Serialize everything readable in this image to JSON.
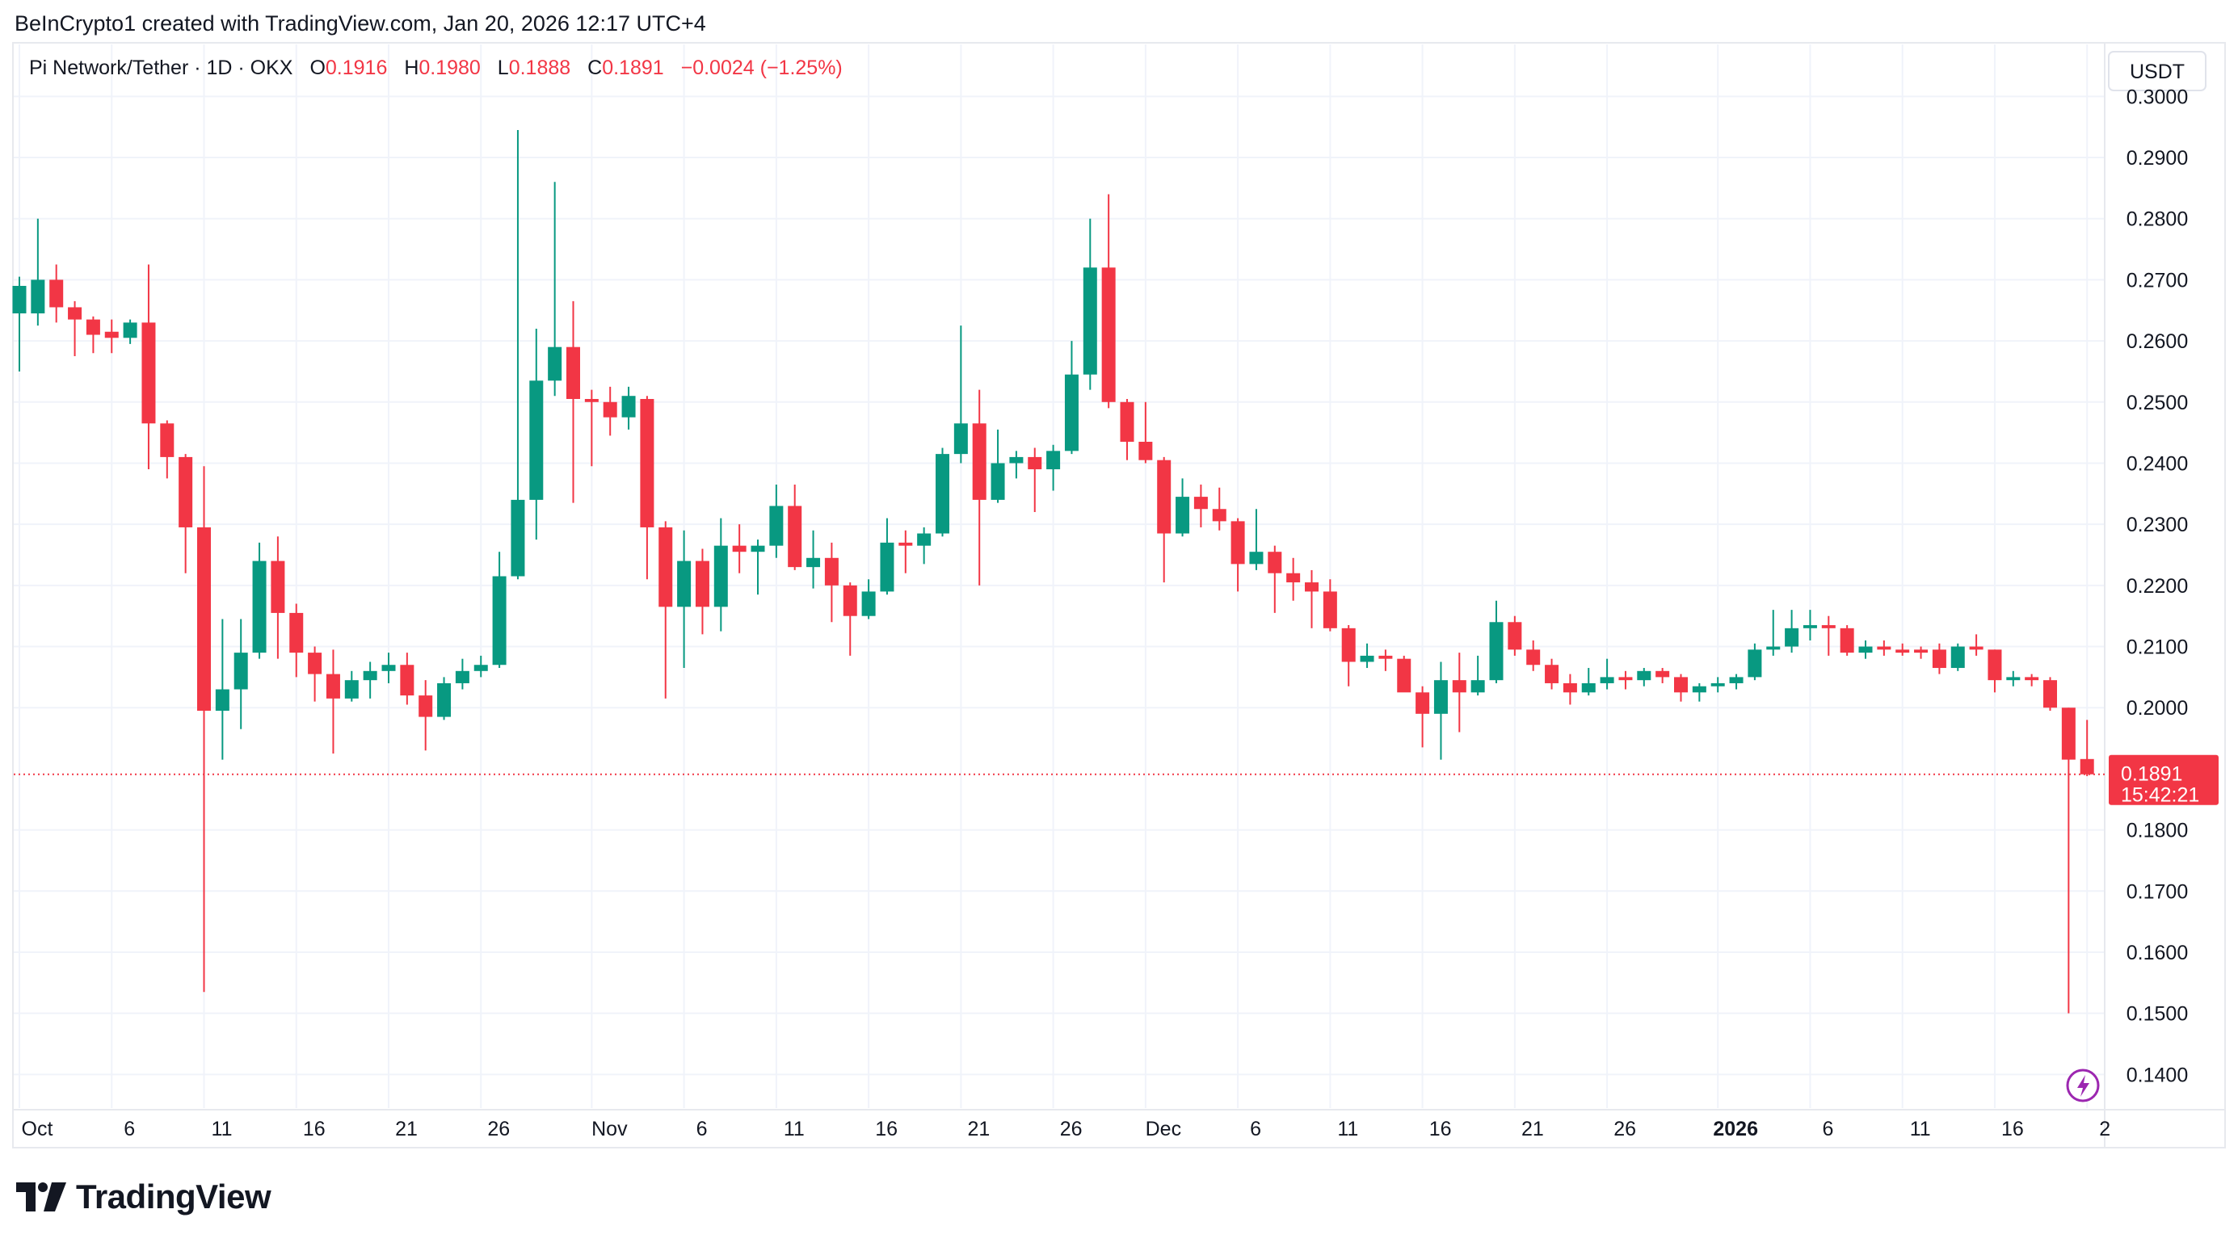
{
  "header": {
    "credit": "BeInCrypto1 created with TradingView.com, Jan 20, 2026 12:17 UTC+4"
  },
  "legend": {
    "symbol": "Pi Network/Tether · 1D · OKX",
    "open_label": "O",
    "open": "0.1916",
    "high_label": "H",
    "high": "0.1980",
    "low_label": "L",
    "low": "0.1888",
    "close_label": "C",
    "close": "0.1891",
    "change": "−0.0024 (−1.25%)"
  },
  "brand": {
    "name": "TradingView"
  },
  "colors": {
    "up": "#089981",
    "down": "#f23645",
    "grid": "#f0f3fa",
    "last_price": "#f23645",
    "lightning": "#9c27b0"
  },
  "chart_data": {
    "type": "candlestick",
    "title": "Pi Network/Tether · 1D · OKX",
    "currency": "USDT",
    "ylim": [
      0.1345,
      0.3085
    ],
    "y_ticks": [
      "0.3000",
      "0.2900",
      "0.2800",
      "0.2700",
      "0.2600",
      "0.2500",
      "0.2400",
      "0.2300",
      "0.2200",
      "0.2100",
      "0.2000",
      "0.1800",
      "0.1700",
      "0.1600",
      "0.1500",
      "0.1400"
    ],
    "x_ticks": [
      {
        "label": "Oct",
        "bold": false,
        "day": 0
      },
      {
        "label": "6",
        "bold": false,
        "day": 5
      },
      {
        "label": "11",
        "bold": false,
        "day": 10
      },
      {
        "label": "16",
        "bold": false,
        "day": 15
      },
      {
        "label": "21",
        "bold": false,
        "day": 20
      },
      {
        "label": "26",
        "bold": false,
        "day": 25
      },
      {
        "label": "Nov",
        "bold": false,
        "day": 31
      },
      {
        "label": "6",
        "bold": false,
        "day": 36
      },
      {
        "label": "11",
        "bold": false,
        "day": 41
      },
      {
        "label": "16",
        "bold": false,
        "day": 46
      },
      {
        "label": "21",
        "bold": false,
        "day": 51
      },
      {
        "label": "26",
        "bold": false,
        "day": 56
      },
      {
        "label": "Dec",
        "bold": false,
        "day": 61
      },
      {
        "label": "6",
        "bold": false,
        "day": 66
      },
      {
        "label": "11",
        "bold": false,
        "day": 71
      },
      {
        "label": "16",
        "bold": false,
        "day": 76
      },
      {
        "label": "21",
        "bold": false,
        "day": 81
      },
      {
        "label": "26",
        "bold": false,
        "day": 86
      },
      {
        "label": "2026",
        "bold": true,
        "day": 92
      },
      {
        "label": "6",
        "bold": false,
        "day": 97
      },
      {
        "label": "11",
        "bold": false,
        "day": 102
      },
      {
        "label": "16",
        "bold": false,
        "day": 107
      },
      {
        "label": "2",
        "bold": false,
        "day": 112
      }
    ],
    "last_price": {
      "value": 0.1891,
      "label": "0.1891",
      "countdown": "15:42:21"
    },
    "candles": [
      {
        "date": "2025-09-30",
        "o": 0.2645,
        "h": 0.2705,
        "l": 0.255,
        "c": 0.269
      },
      {
        "date": "2025-10-01",
        "o": 0.2645,
        "h": 0.28,
        "l": 0.2625,
        "c": 0.27
      },
      {
        "date": "2025-10-02",
        "o": 0.27,
        "h": 0.2725,
        "l": 0.263,
        "c": 0.2655
      },
      {
        "date": "2025-10-03",
        "o": 0.2655,
        "h": 0.2665,
        "l": 0.2575,
        "c": 0.2635
      },
      {
        "date": "2025-10-04",
        "o": 0.2635,
        "h": 0.264,
        "l": 0.258,
        "c": 0.261
      },
      {
        "date": "2025-10-05",
        "o": 0.2615,
        "h": 0.2635,
        "l": 0.258,
        "c": 0.2605
      },
      {
        "date": "2025-10-06",
        "o": 0.2605,
        "h": 0.2635,
        "l": 0.2595,
        "c": 0.263
      },
      {
        "date": "2025-10-07",
        "o": 0.263,
        "h": 0.2725,
        "l": 0.239,
        "c": 0.2465
      },
      {
        "date": "2025-10-08",
        "o": 0.2465,
        "h": 0.247,
        "l": 0.2375,
        "c": 0.241
      },
      {
        "date": "2025-10-09",
        "o": 0.241,
        "h": 0.2415,
        "l": 0.222,
        "c": 0.2295
      },
      {
        "date": "2025-10-10",
        "o": 0.2295,
        "h": 0.2395,
        "l": 0.1535,
        "c": 0.1995
      },
      {
        "date": "2025-10-11",
        "o": 0.1995,
        "h": 0.2145,
        "l": 0.1915,
        "c": 0.203
      },
      {
        "date": "2025-10-12",
        "o": 0.203,
        "h": 0.2145,
        "l": 0.1965,
        "c": 0.209
      },
      {
        "date": "2025-10-13",
        "o": 0.209,
        "h": 0.227,
        "l": 0.208,
        "c": 0.224
      },
      {
        "date": "2025-10-14",
        "o": 0.224,
        "h": 0.228,
        "l": 0.208,
        "c": 0.2155
      },
      {
        "date": "2025-10-15",
        "o": 0.2155,
        "h": 0.217,
        "l": 0.205,
        "c": 0.209
      },
      {
        "date": "2025-10-16",
        "o": 0.209,
        "h": 0.21,
        "l": 0.201,
        "c": 0.2055
      },
      {
        "date": "2025-10-17",
        "o": 0.2055,
        "h": 0.2095,
        "l": 0.1925,
        "c": 0.2015
      },
      {
        "date": "2025-10-18",
        "o": 0.2015,
        "h": 0.206,
        "l": 0.201,
        "c": 0.2045
      },
      {
        "date": "2025-10-19",
        "o": 0.2045,
        "h": 0.2075,
        "l": 0.2015,
        "c": 0.206
      },
      {
        "date": "2025-10-20",
        "o": 0.206,
        "h": 0.209,
        "l": 0.204,
        "c": 0.207
      },
      {
        "date": "2025-10-21",
        "o": 0.207,
        "h": 0.209,
        "l": 0.2005,
        "c": 0.202
      },
      {
        "date": "2025-10-22",
        "o": 0.202,
        "h": 0.2045,
        "l": 0.193,
        "c": 0.1985
      },
      {
        "date": "2025-10-23",
        "o": 0.1985,
        "h": 0.205,
        "l": 0.198,
        "c": 0.204
      },
      {
        "date": "2025-10-24",
        "o": 0.204,
        "h": 0.208,
        "l": 0.203,
        "c": 0.206
      },
      {
        "date": "2025-10-25",
        "o": 0.206,
        "h": 0.2085,
        "l": 0.205,
        "c": 0.207
      },
      {
        "date": "2025-10-26",
        "o": 0.207,
        "h": 0.2255,
        "l": 0.2065,
        "c": 0.2215
      },
      {
        "date": "2025-10-27",
        "o": 0.2215,
        "h": 0.2945,
        "l": 0.221,
        "c": 0.234
      },
      {
        "date": "2025-10-28",
        "o": 0.234,
        "h": 0.262,
        "l": 0.2275,
        "c": 0.2535
      },
      {
        "date": "2025-10-29",
        "o": 0.2535,
        "h": 0.286,
        "l": 0.251,
        "c": 0.259
      },
      {
        "date": "2025-10-30",
        "o": 0.259,
        "h": 0.2665,
        "l": 0.2335,
        "c": 0.2505
      },
      {
        "date": "2025-10-31",
        "o": 0.2505,
        "h": 0.252,
        "l": 0.2395,
        "c": 0.25
      },
      {
        "date": "2025-11-01",
        "o": 0.25,
        "h": 0.2525,
        "l": 0.2445,
        "c": 0.2475
      },
      {
        "date": "2025-11-02",
        "o": 0.2475,
        "h": 0.2525,
        "l": 0.2455,
        "c": 0.251
      },
      {
        "date": "2025-11-03",
        "o": 0.2505,
        "h": 0.251,
        "l": 0.221,
        "c": 0.2295
      },
      {
        "date": "2025-11-04",
        "o": 0.2295,
        "h": 0.2305,
        "l": 0.2015,
        "c": 0.2165
      },
      {
        "date": "2025-11-05",
        "o": 0.2165,
        "h": 0.229,
        "l": 0.2065,
        "c": 0.224
      },
      {
        "date": "2025-11-06",
        "o": 0.224,
        "h": 0.226,
        "l": 0.212,
        "c": 0.2165
      },
      {
        "date": "2025-11-07",
        "o": 0.2165,
        "h": 0.231,
        "l": 0.2125,
        "c": 0.2265
      },
      {
        "date": "2025-11-08",
        "o": 0.2265,
        "h": 0.23,
        "l": 0.222,
        "c": 0.2255
      },
      {
        "date": "2025-11-09",
        "o": 0.2255,
        "h": 0.2275,
        "l": 0.2185,
        "c": 0.2265
      },
      {
        "date": "2025-11-10",
        "o": 0.2265,
        "h": 0.2365,
        "l": 0.2245,
        "c": 0.233
      },
      {
        "date": "2025-11-11",
        "o": 0.233,
        "h": 0.2365,
        "l": 0.2225,
        "c": 0.223
      },
      {
        "date": "2025-11-12",
        "o": 0.223,
        "h": 0.229,
        "l": 0.2195,
        "c": 0.2245
      },
      {
        "date": "2025-11-13",
        "o": 0.2245,
        "h": 0.227,
        "l": 0.214,
        "c": 0.22
      },
      {
        "date": "2025-11-14",
        "o": 0.22,
        "h": 0.2205,
        "l": 0.2085,
        "c": 0.215
      },
      {
        "date": "2025-11-15",
        "o": 0.215,
        "h": 0.221,
        "l": 0.2145,
        "c": 0.219
      },
      {
        "date": "2025-11-16",
        "o": 0.219,
        "h": 0.231,
        "l": 0.2185,
        "c": 0.227
      },
      {
        "date": "2025-11-17",
        "o": 0.227,
        "h": 0.229,
        "l": 0.222,
        "c": 0.2265
      },
      {
        "date": "2025-11-18",
        "o": 0.2265,
        "h": 0.2295,
        "l": 0.2235,
        "c": 0.2285
      },
      {
        "date": "2025-11-19",
        "o": 0.2285,
        "h": 0.2425,
        "l": 0.228,
        "c": 0.2415
      },
      {
        "date": "2025-11-20",
        "o": 0.2415,
        "h": 0.2625,
        "l": 0.24,
        "c": 0.2465
      },
      {
        "date": "2025-11-21",
        "o": 0.2465,
        "h": 0.252,
        "l": 0.22,
        "c": 0.234
      },
      {
        "date": "2025-11-22",
        "o": 0.234,
        "h": 0.2455,
        "l": 0.2335,
        "c": 0.24
      },
      {
        "date": "2025-11-23",
        "o": 0.24,
        "h": 0.242,
        "l": 0.2375,
        "c": 0.241
      },
      {
        "date": "2025-11-24",
        "o": 0.241,
        "h": 0.2425,
        "l": 0.232,
        "c": 0.239
      },
      {
        "date": "2025-11-25",
        "o": 0.239,
        "h": 0.243,
        "l": 0.2355,
        "c": 0.242
      },
      {
        "date": "2025-11-26",
        "o": 0.242,
        "h": 0.26,
        "l": 0.2415,
        "c": 0.2545
      },
      {
        "date": "2025-11-27",
        "o": 0.2545,
        "h": 0.28,
        "l": 0.252,
        "c": 0.272
      },
      {
        "date": "2025-11-28",
        "o": 0.272,
        "h": 0.284,
        "l": 0.249,
        "c": 0.25
      },
      {
        "date": "2025-11-29",
        "o": 0.25,
        "h": 0.2505,
        "l": 0.2405,
        "c": 0.2435
      },
      {
        "date": "2025-11-30",
        "o": 0.2435,
        "h": 0.25,
        "l": 0.24,
        "c": 0.2405
      },
      {
        "date": "2025-12-01",
        "o": 0.2405,
        "h": 0.241,
        "l": 0.2205,
        "c": 0.2285
      },
      {
        "date": "2025-12-02",
        "o": 0.2285,
        "h": 0.2375,
        "l": 0.228,
        "c": 0.2345
      },
      {
        "date": "2025-12-03",
        "o": 0.2345,
        "h": 0.2365,
        "l": 0.2295,
        "c": 0.2325
      },
      {
        "date": "2025-12-04",
        "o": 0.2325,
        "h": 0.236,
        "l": 0.229,
        "c": 0.2305
      },
      {
        "date": "2025-12-05",
        "o": 0.2305,
        "h": 0.231,
        "l": 0.219,
        "c": 0.2235
      },
      {
        "date": "2025-12-06",
        "o": 0.2235,
        "h": 0.2325,
        "l": 0.2225,
        "c": 0.2255
      },
      {
        "date": "2025-12-07",
        "o": 0.2255,
        "h": 0.2265,
        "l": 0.2155,
        "c": 0.222
      },
      {
        "date": "2025-12-08",
        "o": 0.222,
        "h": 0.2245,
        "l": 0.2175,
        "c": 0.2205
      },
      {
        "date": "2025-12-09",
        "o": 0.2205,
        "h": 0.2225,
        "l": 0.213,
        "c": 0.219
      },
      {
        "date": "2025-12-10",
        "o": 0.219,
        "h": 0.221,
        "l": 0.2125,
        "c": 0.213
      },
      {
        "date": "2025-12-11",
        "o": 0.213,
        "h": 0.2135,
        "l": 0.2035,
        "c": 0.2075
      },
      {
        "date": "2025-12-12",
        "o": 0.2075,
        "h": 0.2105,
        "l": 0.2065,
        "c": 0.2085
      },
      {
        "date": "2025-12-13",
        "o": 0.2085,
        "h": 0.2095,
        "l": 0.206,
        "c": 0.208
      },
      {
        "date": "2025-12-14",
        "o": 0.208,
        "h": 0.2085,
        "l": 0.203,
        "c": 0.2025
      },
      {
        "date": "2025-12-15",
        "o": 0.2025,
        "h": 0.2035,
        "l": 0.1935,
        "c": 0.199
      },
      {
        "date": "2025-12-16",
        "o": 0.199,
        "h": 0.2075,
        "l": 0.1915,
        "c": 0.2045
      },
      {
        "date": "2025-12-17",
        "o": 0.2045,
        "h": 0.209,
        "l": 0.196,
        "c": 0.2025
      },
      {
        "date": "2025-12-18",
        "o": 0.2025,
        "h": 0.2085,
        "l": 0.202,
        "c": 0.2045
      },
      {
        "date": "2025-12-19",
        "o": 0.2045,
        "h": 0.2175,
        "l": 0.204,
        "c": 0.214
      },
      {
        "date": "2025-12-20",
        "o": 0.214,
        "h": 0.215,
        "l": 0.2085,
        "c": 0.2095
      },
      {
        "date": "2025-12-21",
        "o": 0.2095,
        "h": 0.211,
        "l": 0.206,
        "c": 0.207
      },
      {
        "date": "2025-12-22",
        "o": 0.207,
        "h": 0.208,
        "l": 0.203,
        "c": 0.204
      },
      {
        "date": "2025-12-23",
        "o": 0.204,
        "h": 0.2055,
        "l": 0.2005,
        "c": 0.2025
      },
      {
        "date": "2025-12-24",
        "o": 0.2025,
        "h": 0.2065,
        "l": 0.202,
        "c": 0.204
      },
      {
        "date": "2025-12-25",
        "o": 0.204,
        "h": 0.208,
        "l": 0.203,
        "c": 0.205
      },
      {
        "date": "2025-12-26",
        "o": 0.205,
        "h": 0.206,
        "l": 0.203,
        "c": 0.2045
      },
      {
        "date": "2025-12-27",
        "o": 0.2045,
        "h": 0.2065,
        "l": 0.2035,
        "c": 0.206
      },
      {
        "date": "2025-12-28",
        "o": 0.206,
        "h": 0.2065,
        "l": 0.204,
        "c": 0.205
      },
      {
        "date": "2025-12-29",
        "o": 0.205,
        "h": 0.2055,
        "l": 0.201,
        "c": 0.2025
      },
      {
        "date": "2025-12-30",
        "o": 0.2025,
        "h": 0.204,
        "l": 0.201,
        "c": 0.2035
      },
      {
        "date": "2025-12-31",
        "o": 0.2035,
        "h": 0.205,
        "l": 0.2025,
        "c": 0.204
      },
      {
        "date": "2026-01-01",
        "o": 0.204,
        "h": 0.2055,
        "l": 0.203,
        "c": 0.205
      },
      {
        "date": "2026-01-02",
        "o": 0.205,
        "h": 0.2105,
        "l": 0.2045,
        "c": 0.2095
      },
      {
        "date": "2026-01-03",
        "o": 0.2095,
        "h": 0.216,
        "l": 0.2085,
        "c": 0.21
      },
      {
        "date": "2026-01-04",
        "o": 0.21,
        "h": 0.216,
        "l": 0.209,
        "c": 0.213
      },
      {
        "date": "2026-01-05",
        "o": 0.213,
        "h": 0.216,
        "l": 0.211,
        "c": 0.2135
      },
      {
        "date": "2026-01-06",
        "o": 0.2135,
        "h": 0.215,
        "l": 0.2085,
        "c": 0.213
      },
      {
        "date": "2026-01-07",
        "o": 0.213,
        "h": 0.2135,
        "l": 0.2085,
        "c": 0.209
      },
      {
        "date": "2026-01-08",
        "o": 0.209,
        "h": 0.211,
        "l": 0.208,
        "c": 0.21
      },
      {
        "date": "2026-01-09",
        "o": 0.21,
        "h": 0.211,
        "l": 0.2085,
        "c": 0.2095
      },
      {
        "date": "2026-01-10",
        "o": 0.2095,
        "h": 0.2105,
        "l": 0.2085,
        "c": 0.209
      },
      {
        "date": "2026-01-11",
        "o": 0.2095,
        "h": 0.21,
        "l": 0.208,
        "c": 0.209
      },
      {
        "date": "2026-01-12",
        "o": 0.2095,
        "h": 0.2105,
        "l": 0.2055,
        "c": 0.2065
      },
      {
        "date": "2026-01-13",
        "o": 0.2065,
        "h": 0.2105,
        "l": 0.206,
        "c": 0.21
      },
      {
        "date": "2026-01-14",
        "o": 0.21,
        "h": 0.212,
        "l": 0.2085,
        "c": 0.2095
      },
      {
        "date": "2026-01-15",
        "o": 0.2095,
        "h": 0.2095,
        "l": 0.2025,
        "c": 0.2045
      },
      {
        "date": "2026-01-16",
        "o": 0.2045,
        "h": 0.206,
        "l": 0.2035,
        "c": 0.205
      },
      {
        "date": "2026-01-17",
        "o": 0.205,
        "h": 0.2055,
        "l": 0.2035,
        "c": 0.2045
      },
      {
        "date": "2026-01-18",
        "o": 0.2045,
        "h": 0.205,
        "l": 0.1995,
        "c": 0.2
      },
      {
        "date": "2026-01-19",
        "o": 0.2,
        "h": 0.2,
        "l": 0.15,
        "c": 0.1915
      },
      {
        "date": "2026-01-20",
        "o": 0.1916,
        "h": 0.198,
        "l": 0.1888,
        "c": 0.1891
      }
    ]
  }
}
